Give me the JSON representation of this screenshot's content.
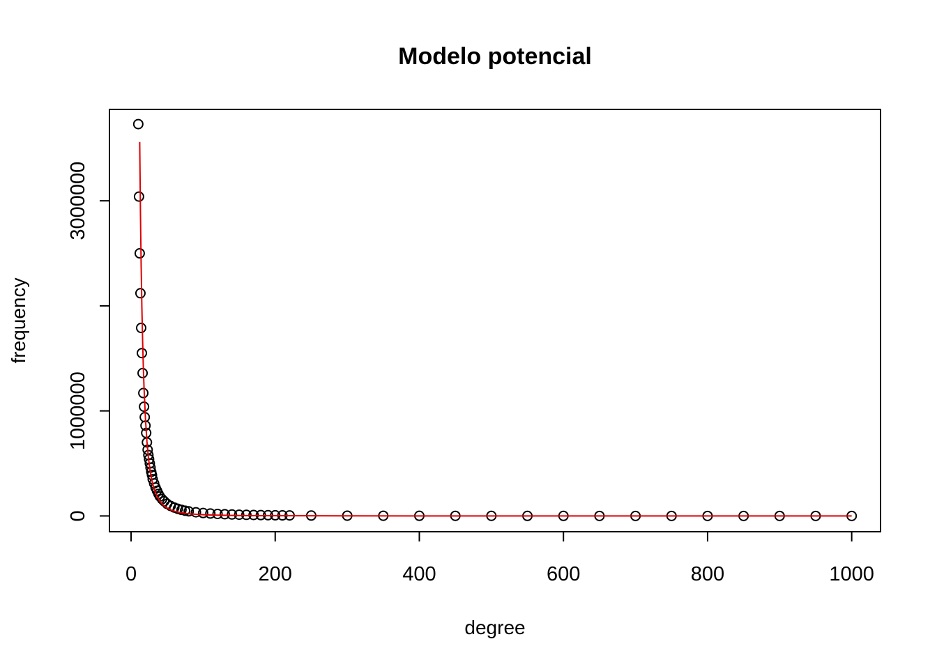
{
  "chart_data": {
    "type": "scatter",
    "title": "Modelo potencial",
    "xlabel": "degree",
    "ylabel": "frequency",
    "xlim": [
      -30,
      1040
    ],
    "ylim": [
      -150000,
      3870000
    ],
    "x_ticks": [
      0,
      200,
      400,
      600,
      800,
      1000
    ],
    "y_ticks": [
      0,
      1000000,
      2000000,
      3000000
    ],
    "y_tick_labels": [
      "0",
      "1000000",
      "",
      "3000000"
    ],
    "grid": false,
    "legend": "none",
    "points_color": "#000000",
    "fit_color": "#e00000",
    "series": [
      {
        "type": "scatter",
        "x": [
          10,
          11,
          12,
          13,
          14,
          15,
          16,
          17,
          18,
          19,
          20,
          21,
          22,
          23,
          24,
          25,
          26,
          27,
          28,
          29,
          30,
          32,
          34,
          36,
          38,
          40,
          43,
          46,
          50,
          55,
          60,
          65,
          70,
          75,
          80,
          90,
          100,
          110,
          120,
          130,
          140,
          150,
          160,
          170,
          180,
          190,
          200,
          210,
          220,
          250,
          300,
          350,
          400,
          450,
          500,
          550,
          600,
          650,
          700,
          750,
          800,
          850,
          900,
          950,
          1000
        ],
        "y": [
          3730000,
          3040000,
          2500000,
          2120000,
          1790000,
          1550000,
          1360000,
          1170000,
          1040000,
          940000,
          860000,
          790000,
          700000,
          630000,
          580000,
          540000,
          500000,
          460000,
          420000,
          390000,
          350000,
          310000,
          270000,
          240000,
          210000,
          185000,
          160000,
          140000,
          115000,
          95000,
          80000,
          68000,
          58000,
          50000,
          44000,
          35000,
          28000,
          23000,
          19500,
          16500,
          14000,
          12000,
          10500,
          9300,
          8200,
          7300,
          6500,
          5800,
          5200,
          4000,
          2800,
          2000,
          1500,
          1200,
          900,
          750,
          600,
          500,
          420,
          360,
          300,
          260,
          220,
          190,
          160
        ]
      },
      {
        "type": "line",
        "x": [
          12,
          13,
          14,
          15,
          16,
          17,
          18,
          20,
          22,
          24,
          26,
          28,
          30,
          33,
          36,
          40,
          45,
          50,
          55,
          60,
          70,
          80,
          90,
          100,
          110,
          120,
          140,
          160,
          180,
          200,
          250,
          300,
          400,
          500,
          600,
          700,
          800,
          900,
          1000
        ],
        "y": [
          3560000,
          2890000,
          2380000,
          1980000,
          1670000,
          1420000,
          1220000,
          920000,
          710000,
          560000,
          450000,
          370000,
          305000,
          235000,
          185000,
          140000,
          100000,
          75000,
          58000,
          45000,
          30000,
          21000,
          15500,
          12000,
          9500,
          7700,
          5300,
          3800,
          2900,
          2300,
          1400,
          900,
          480,
          290,
          200,
          140,
          105,
          80,
          65
        ]
      }
    ]
  }
}
